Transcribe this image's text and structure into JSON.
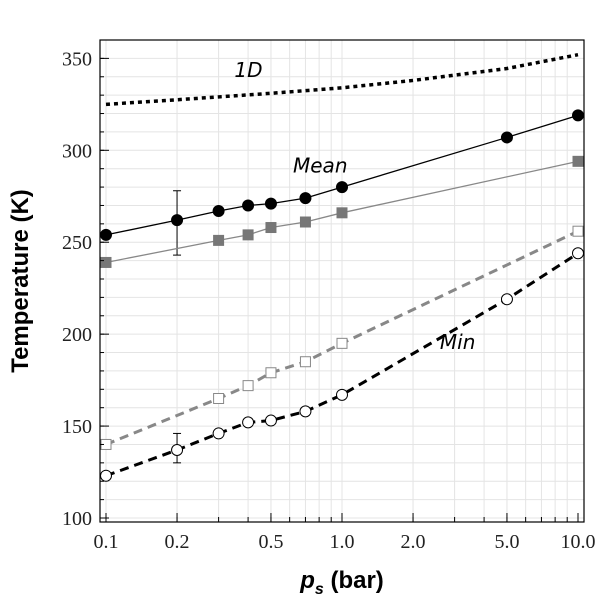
{
  "chart_data": {
    "type": "line",
    "xscale": "log",
    "xlim": [
      0.1,
      10.0
    ],
    "ylim": [
      100,
      360
    ],
    "x_ticks": [
      {
        "value": 0.1,
        "label": "0.1"
      },
      {
        "value": 0.2,
        "label": "0.2"
      },
      {
        "value": 0.5,
        "label": "0.5"
      },
      {
        "value": 1.0,
        "label": "1.0"
      },
      {
        "value": 2.0,
        "label": "2.0"
      },
      {
        "value": 5.0,
        "label": "5.0"
      },
      {
        "value": 10.0,
        "label": "10.0"
      }
    ],
    "y_ticks": [
      {
        "value": 100,
        "label": "100"
      },
      {
        "value": 150,
        "label": "150"
      },
      {
        "value": 200,
        "label": "200"
      },
      {
        "value": 250,
        "label": "250"
      },
      {
        "value": 300,
        "label": "300"
      },
      {
        "value": 350,
        "label": "350"
      }
    ],
    "xlabel_main": "p",
    "xlabel_sub": "s",
    "xlabel_unit": " (bar)",
    "ylabel": "Temperature (K)",
    "grid": true,
    "annotations": [
      {
        "name": "annotation-1d",
        "text": "1D",
        "x": 0.35,
        "y": 340
      },
      {
        "name": "annotation-mean",
        "text": "Mean",
        "x": 0.62,
        "y": 288
      },
      {
        "name": "annotation-min",
        "text": "Min",
        "x": 2.6,
        "y": 192
      }
    ],
    "series": [
      {
        "name": "1D",
        "color": "#000000",
        "dash": "dotted",
        "width": 3.5,
        "marker": "none",
        "x": [
          0.1,
          0.2,
          0.5,
          1.0,
          2.0,
          5.0,
          10.0
        ],
        "values": [
          325,
          327.5,
          331,
          334,
          338,
          344.5,
          352
        ]
      },
      {
        "name": "Mean (black)",
        "color": "#000000",
        "dash": "solid",
        "width": 1.3,
        "marker": "circle",
        "marker_fill": "#000000",
        "x": [
          0.1,
          0.2,
          0.3,
          0.4,
          0.5,
          0.7,
          1.0,
          5.0,
          10.0
        ],
        "values": [
          254,
          262,
          267,
          270,
          271,
          274,
          280,
          307,
          319
        ],
        "errorbars": [
          {
            "x": 0.2,
            "low": 243,
            "high": 278
          }
        ]
      },
      {
        "name": "Mean (gray)",
        "color": "#888888",
        "dash": "solid",
        "width": 1.3,
        "marker": "square",
        "marker_fill": "#777777",
        "x": [
          0.1,
          0.3,
          0.4,
          0.5,
          0.7,
          1.0,
          10.0
        ],
        "values": [
          239,
          251,
          254,
          258,
          261,
          266,
          294
        ]
      },
      {
        "name": "Min (gray)",
        "color": "#888888",
        "dash": "dashed",
        "width": 3,
        "marker": "square",
        "marker_fill": "#ffffff",
        "x": [
          0.1,
          0.3,
          0.4,
          0.5,
          0.7,
          1.0,
          10.0
        ],
        "values": [
          140,
          165,
          172,
          179,
          185,
          195,
          256
        ]
      },
      {
        "name": "Min (black)",
        "color": "#000000",
        "dash": "dashed",
        "width": 3,
        "marker": "circle",
        "marker_fill": "#ffffff",
        "x": [
          0.1,
          0.2,
          0.3,
          0.4,
          0.5,
          0.7,
          1.0,
          5.0,
          10.0
        ],
        "values": [
          123,
          137,
          146,
          152,
          153,
          158,
          167,
          219,
          244
        ],
        "errorbars": [
          {
            "x": 0.2,
            "low": 130,
            "high": 146
          }
        ]
      }
    ]
  }
}
